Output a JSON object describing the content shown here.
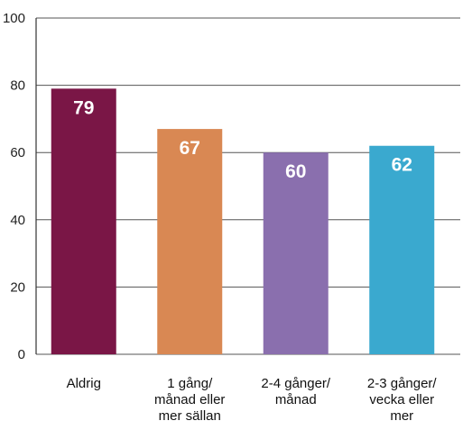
{
  "chart_data": {
    "type": "bar",
    "categories": [
      [
        "Aldrig"
      ],
      [
        "1 gång/",
        "månad eller",
        "mer sällan"
      ],
      [
        "2-4 gånger/",
        "månad"
      ],
      [
        "2-3 gånger/",
        "vecka eller",
        "mer"
      ]
    ],
    "values": [
      79,
      67,
      60,
      62
    ],
    "value_labels": [
      "79",
      "67",
      "60",
      "62"
    ],
    "bar_colors": [
      "#7a1646",
      "#d98853",
      "#8a6fae",
      "#3aa9cf"
    ],
    "title": "",
    "xlabel": "",
    "ylabel": "",
    "ylim": [
      0,
      100
    ],
    "yticks": [
      0,
      20,
      40,
      60,
      80,
      100
    ],
    "ytick_labels": [
      "0",
      "20",
      "40",
      "60",
      "80",
      "100"
    ],
    "grid": true,
    "legend": "none"
  }
}
